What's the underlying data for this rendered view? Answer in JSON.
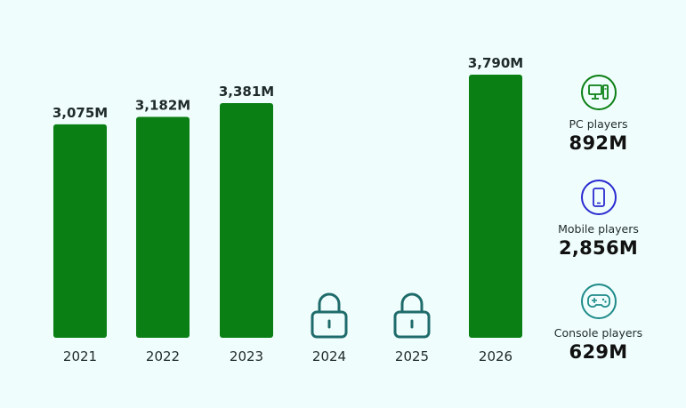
{
  "chart_data": {
    "type": "bar",
    "categories": [
      "2021",
      "2022",
      "2023",
      "2024",
      "2025",
      "2026"
    ],
    "values": [
      3075,
      3182,
      3381,
      null,
      null,
      3790
    ],
    "value_labels": [
      "3,075M",
      "3,182M",
      "3,381M",
      "",
      "",
      "3,790M"
    ],
    "locked": [
      false,
      false,
      false,
      true,
      true,
      false
    ],
    "bar_color": "#0a7f14",
    "lock_color": "#1f6b6b",
    "ylim": [
      0,
      3800
    ],
    "grid": false
  },
  "stats": [
    {
      "label": "PC players",
      "value": "892M",
      "icon": "computer-icon",
      "color": "#0a7f14"
    },
    {
      "label": "Mobile players",
      "value": "2,856M",
      "icon": "phone-icon",
      "color": "#2a2ad1"
    },
    {
      "label": "Console players",
      "value": "629M",
      "icon": "gamepad-icon",
      "color": "#1f8a8a"
    }
  ]
}
